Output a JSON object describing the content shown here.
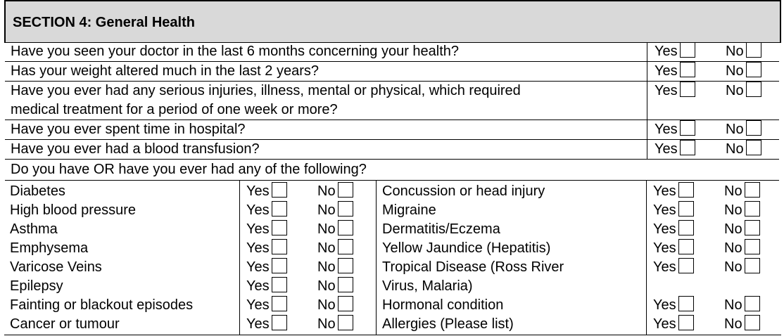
{
  "section": {
    "title": "SECTION 4: General Health"
  },
  "labels": {
    "yes": "Yes",
    "no": "No"
  },
  "questions": [
    {
      "text": "Have you seen your doctor in the last 6 months concerning your health?"
    },
    {
      "text": "Has your weight altered much in the last 2 years?"
    },
    {
      "text": "Have you ever had any serious injuries, illness, mental or physical, which required",
      "text2": "medical treatment for a period of one week or more?"
    },
    {
      "text": "Have you ever spent time in hospital?"
    },
    {
      "text": "Have you ever had a blood transfusion?"
    }
  ],
  "subheading": "Do you have OR have you ever had any of the following?",
  "left_conditions": [
    "Diabetes",
    "High blood pressure",
    "Asthma",
    "Emphysema",
    "Varicose Veins",
    "Epilepsy",
    "Fainting or blackout episodes",
    "Cancer or tumour"
  ],
  "right_conditions": [
    "Concussion or head injury",
    "Migraine",
    "Dermatitis/Eczema",
    "Yellow Jaundice (Hepatitis)",
    "Tropical Disease (Ross River",
    "Virus, Malaria)",
    "Hormonal condition",
    "Allergies (Please list)"
  ]
}
